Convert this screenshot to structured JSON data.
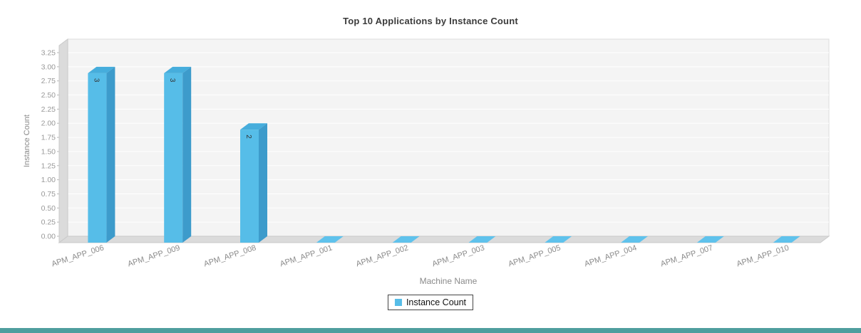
{
  "chart_data": {
    "type": "bar",
    "style": "3d-bar",
    "title": "Top 10 Applications by Instance Count",
    "categories": [
      "APM_APP_006",
      "APM_APP_009",
      "APM_APP_008",
      "APM_APP_001",
      "APM_APP_002",
      "APM_APP_003",
      "APM_APP_005",
      "APM_APP_004",
      "APM_APP_007",
      "APM_APP_010"
    ],
    "values": [
      3,
      3,
      2,
      0,
      0,
      0,
      0,
      0,
      0,
      0
    ],
    "series": [
      {
        "name": "Instance Count",
        "values": [
          3,
          3,
          2,
          0,
          0,
          0,
          0,
          0,
          0,
          0
        ]
      }
    ],
    "bar_value_labels": [
      "3",
      "3",
      "2",
      "",
      "",
      "",
      "",
      "",
      "",
      ""
    ],
    "xlabel": "Machine Name",
    "ylabel": "Instance Count",
    "ylim": [
      0,
      3.25
    ],
    "ytick_step": 0.25,
    "ytick_labels": [
      "0.00",
      "0.25",
      "0.50",
      "0.75",
      "1.00",
      "1.25",
      "1.50",
      "1.75",
      "2.00",
      "2.25",
      "2.50",
      "2.75",
      "3.00",
      "3.25"
    ],
    "grid": true,
    "legend_position": "bottom"
  },
  "colors": {
    "bar_front": "#56BDE8",
    "bar_top": "#46ADDC",
    "bar_side": "#3D9BCB",
    "bar_zero": "#5FC2EC",
    "wall": "#DBDBDB",
    "wall_edge": "#C9C9C9",
    "plot_bg": "#F4F4F4",
    "plot_border": "#DDDDDD",
    "grid": "#FFFFFF",
    "tick_text": "#999999",
    "axis_text": "#8A8A8A",
    "value_text": "#333333",
    "legend_border": "#444444",
    "footer_strip": "#4F9E9E"
  }
}
